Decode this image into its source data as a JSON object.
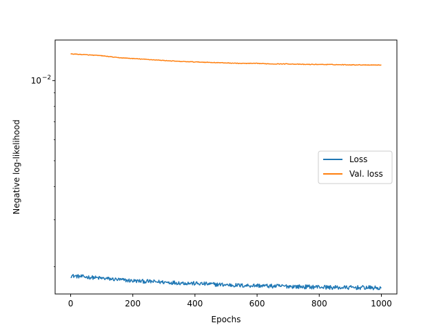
{
  "chart_data": {
    "type": "line",
    "title": "",
    "xlabel": "Epochs",
    "ylabel": "Negative log-likelihood",
    "xlim": [
      -50,
      1050
    ],
    "ylim": [
      0.00158,
      0.0142
    ],
    "yscale": "log",
    "grid": false,
    "x_ticks": [
      0,
      200,
      400,
      600,
      800,
      1000
    ],
    "x_tick_labels": [
      "0",
      "200",
      "400",
      "600",
      "800",
      "1000"
    ],
    "y_ticks_major": [
      0.01
    ],
    "y_tick_labels": [
      {
        "base": "10",
        "exp": "−2"
      }
    ],
    "y_ticks_minor": [
      0.002,
      0.003,
      0.004,
      0.005,
      0.006,
      0.007,
      0.008,
      0.009
    ],
    "legend": {
      "placement": "center-right",
      "entries": [
        "Loss",
        "Val. loss"
      ]
    },
    "series": [
      {
        "name": "Loss",
        "color": "#1f77b4",
        "x": [
          0,
          50,
          100,
          150,
          200,
          250,
          300,
          350,
          400,
          450,
          500,
          550,
          600,
          650,
          700,
          750,
          800,
          850,
          900,
          950,
          1000
        ],
        "values": [
          0.00185,
          0.00183,
          0.00181,
          0.00179,
          0.00177,
          0.00176,
          0.00175,
          0.00174,
          0.00173,
          0.00172,
          0.00171,
          0.0017,
          0.0017,
          0.00169,
          0.00169,
          0.00168,
          0.00168,
          0.00167,
          0.00167,
          0.00167,
          0.00166
        ],
        "noise": 3e-05
      },
      {
        "name": "Val. loss",
        "color": "#ff7f0e",
        "x": [
          0,
          50,
          100,
          150,
          200,
          250,
          300,
          350,
          400,
          450,
          500,
          550,
          600,
          650,
          700,
          750,
          800,
          850,
          900,
          950,
          1000
        ],
        "values": [
          0.0126,
          0.0125,
          0.0124,
          0.0122,
          0.0121,
          0.012,
          0.0119,
          0.0118,
          0.01175,
          0.0117,
          0.01165,
          0.0116,
          0.0116,
          0.01155,
          0.01155,
          0.0115,
          0.0115,
          0.01148,
          0.01146,
          0.01145,
          0.01144
        ],
        "noise": 3e-05
      }
    ]
  }
}
